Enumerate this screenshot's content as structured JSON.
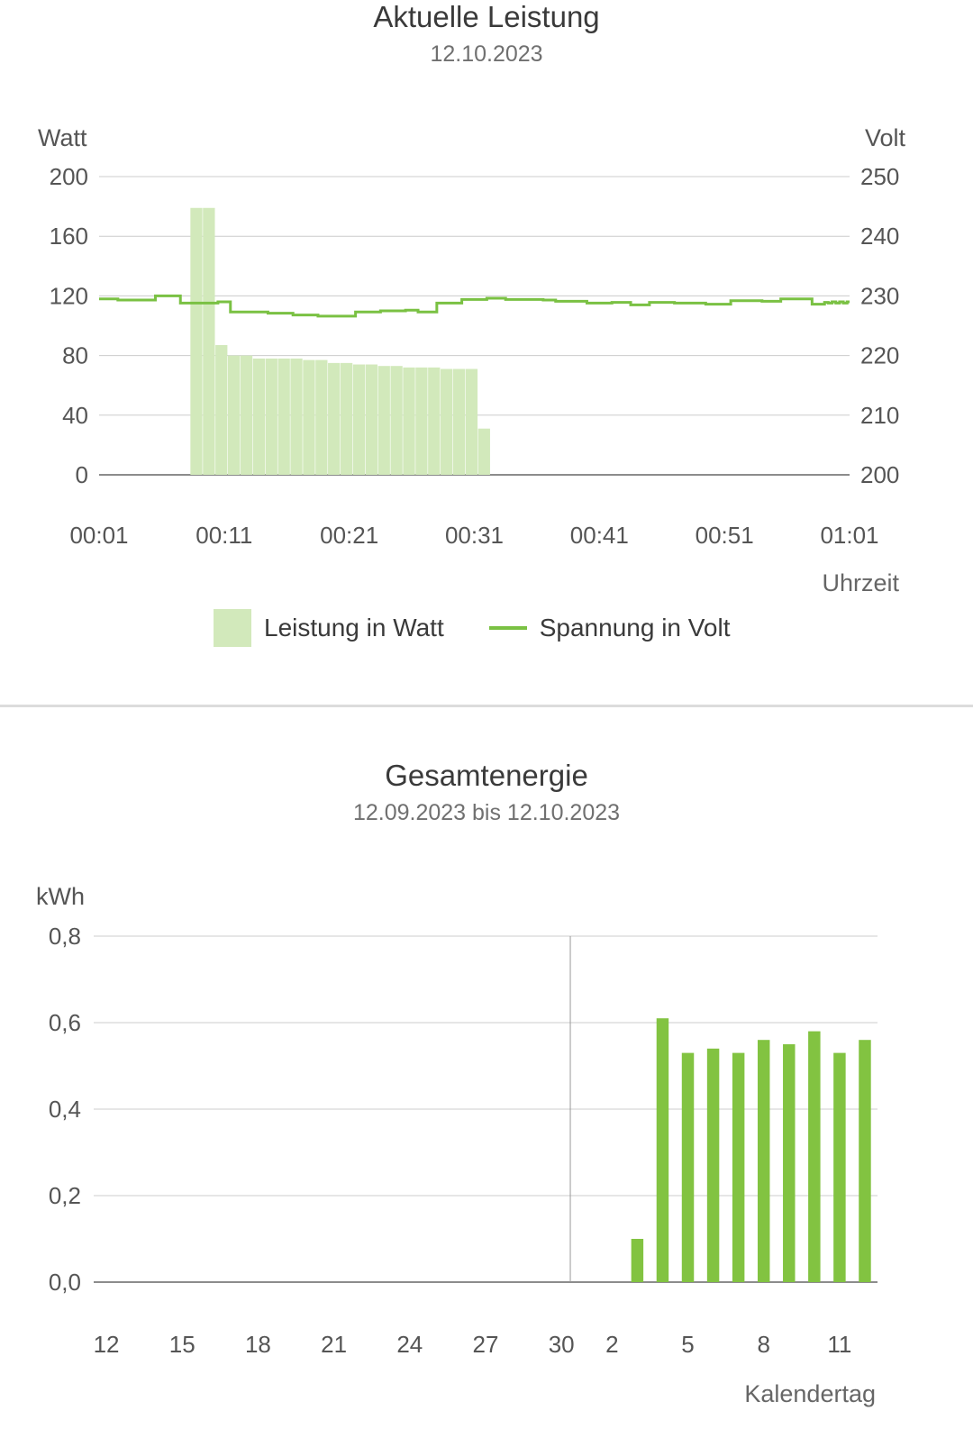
{
  "power_chart": {
    "title": "Aktuelle Leistung",
    "subtitle": "12.10.2023",
    "ylabel_left": "Watt",
    "ylabel_right": "Volt",
    "xlabel": "Uhrzeit",
    "legend": {
      "bar_label": "Leistung in Watt",
      "line_label": "Spannung in Volt"
    }
  },
  "energy_chart": {
    "title": "Gesamtenergie",
    "subtitle": "12.09.2023 bis 12.10.2023",
    "ylabel": "kWh",
    "xlabel": "Kalendertag"
  },
  "colors": {
    "bar_light": "#d2e9bb",
    "line_green": "#7ac143",
    "bar_green": "#82c341",
    "grid": "#cccccc"
  },
  "chart_data": [
    {
      "type": "bar",
      "title": "Aktuelle Leistung",
      "subtitle": "12.10.2023",
      "xlabel": "Uhrzeit",
      "ylabel": "Watt",
      "ylabel_right": "Volt",
      "ylim": [
        0,
        200
      ],
      "ylim_right": [
        200,
        250
      ],
      "yticks": [
        "0",
        "40",
        "80",
        "120",
        "160",
        "200"
      ],
      "yticks_right": [
        "200",
        "210",
        "220",
        "230",
        "240",
        "250"
      ],
      "xticks": [
        "00:01",
        "00:11",
        "00:21",
        "00:31",
        "00:41",
        "00:51",
        "01:01"
      ],
      "x_unit": "minutes after 00:00",
      "xlim": [
        1,
        61
      ],
      "series": [
        {
          "name": "Leistung in Watt",
          "kind": "bar",
          "x": [
            8.8,
            9.8,
            10.8,
            11.8,
            12.8,
            13.8,
            14.8,
            15.8,
            16.8,
            17.8,
            18.8,
            19.8,
            20.8,
            21.8,
            22.8,
            23.8,
            24.8,
            25.8,
            26.8,
            27.8,
            28.8,
            29.8,
            30.8,
            31.8
          ],
          "values": [
            179,
            179,
            87,
            80,
            80,
            78,
            78,
            78,
            78,
            77,
            77,
            75,
            75,
            74,
            74,
            73,
            73,
            72,
            72,
            72,
            71,
            71,
            71,
            31
          ]
        },
        {
          "name": "Spannung in Volt",
          "kind": "line",
          "x": [
            1,
            2.5,
            3.5,
            5.5,
            6.5,
            7.5,
            9,
            10.5,
            11.5,
            12.5,
            14.5,
            16.5,
            18.5,
            19.5,
            21.5,
            23.5,
            25.5,
            26.5,
            28,
            30,
            31.5,
            32,
            33.5,
            36.5,
            37.5,
            40,
            42,
            43.5,
            45,
            47,
            49.5,
            51.5,
            54,
            55.5,
            56,
            58,
            58.5,
            59,
            59.3,
            59.6,
            59.9,
            60.2,
            60.5,
            60.8,
            61
          ],
          "values": [
            229.5,
            229.3,
            229.3,
            230,
            230,
            228.8,
            228.8,
            229,
            227.3,
            227.3,
            227.1,
            226.8,
            226.6,
            226.6,
            227.3,
            227.5,
            227.6,
            227.3,
            228.8,
            229.4,
            229.4,
            229.6,
            229.4,
            229.3,
            229.1,
            228.8,
            228.9,
            228.5,
            228.9,
            228.8,
            228.6,
            229.2,
            229.1,
            229.5,
            229.5,
            228.6,
            228.6,
            228.9,
            228.8,
            229,
            228.8,
            229,
            228.8,
            229,
            229
          ]
        }
      ],
      "legend": [
        "Leistung in Watt",
        "Spannung in Volt"
      ],
      "legend_position": "bottom",
      "grid": true
    },
    {
      "type": "bar",
      "title": "Gesamtenergie",
      "subtitle": "12.09.2023 bis 12.10.2023",
      "xlabel": "Kalendertag",
      "ylabel": "kWh",
      "ylim": [
        0,
        0.8
      ],
      "yticks": [
        "0,0",
        "0,2",
        "0,4",
        "0,6",
        "0,8"
      ],
      "xticks": [
        "12",
        "15",
        "18",
        "21",
        "24",
        "27",
        "30",
        "2",
        "5",
        "8",
        "11"
      ],
      "categories": [
        "12",
        "13",
        "14",
        "15",
        "16",
        "17",
        "18",
        "19",
        "20",
        "21",
        "22",
        "23",
        "24",
        "25",
        "26",
        "27",
        "28",
        "29",
        "30",
        "1",
        "2",
        "3",
        "4",
        "5",
        "6",
        "7",
        "8",
        "9",
        "10",
        "11",
        "12"
      ],
      "values": [
        0,
        0,
        0,
        0,
        0,
        0,
        0,
        0,
        0,
        0,
        0,
        0,
        0,
        0,
        0,
        0,
        0,
        0,
        0,
        0,
        0,
        0.1,
        0.61,
        0.53,
        0.54,
        0.53,
        0.56,
        0.55,
        0.58,
        0.53,
        0.56
      ],
      "month_separator_after": "30",
      "grid": true
    }
  ]
}
